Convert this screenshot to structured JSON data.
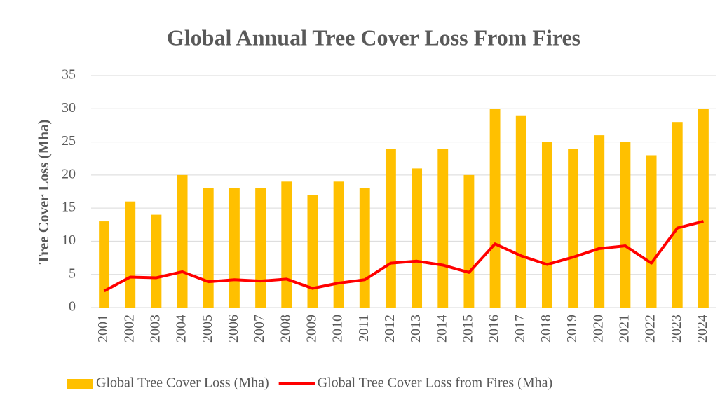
{
  "chart_data": {
    "type": "bar",
    "title": "Global Annual Tree Cover Loss From Fires",
    "y_label": "Tree Cover Loss (Mha)",
    "categories": [
      "2001",
      "2002",
      "2003",
      "2004",
      "2005",
      "2006",
      "2007",
      "2008",
      "2009",
      "2010",
      "2011",
      "2012",
      "2013",
      "2014",
      "2015",
      "2016",
      "2017",
      "2018",
      "2019",
      "2020",
      "2021",
      "2022",
      "2023",
      "2024"
    ],
    "series": [
      {
        "name": "Global Tree Cover Loss (Mha)",
        "type": "bar",
        "color": "#ffc000",
        "values": [
          13,
          16,
          14,
          20,
          18,
          18,
          18,
          19,
          17,
          19,
          18,
          24,
          21,
          24,
          20,
          30,
          29,
          25,
          24,
          26,
          25,
          23,
          28,
          30
        ]
      },
      {
        "name": "Global Tree Cover Loss from Fires (Mha)",
        "type": "line",
        "color": "#ff0000",
        "values": [
          2.5,
          4.6,
          4.5,
          5.4,
          3.9,
          4.2,
          4.0,
          4.3,
          2.9,
          3.7,
          4.2,
          6.7,
          7.0,
          6.4,
          5.3,
          9.6,
          7.8,
          6.5,
          7.6,
          8.9,
          9.3,
          6.7,
          12.0,
          13.0
        ]
      }
    ],
    "ylim": [
      0,
      35
    ],
    "yticks": [
      0,
      5,
      10,
      15,
      20,
      25,
      30,
      35
    ],
    "grid": true,
    "legend": "bottom"
  }
}
